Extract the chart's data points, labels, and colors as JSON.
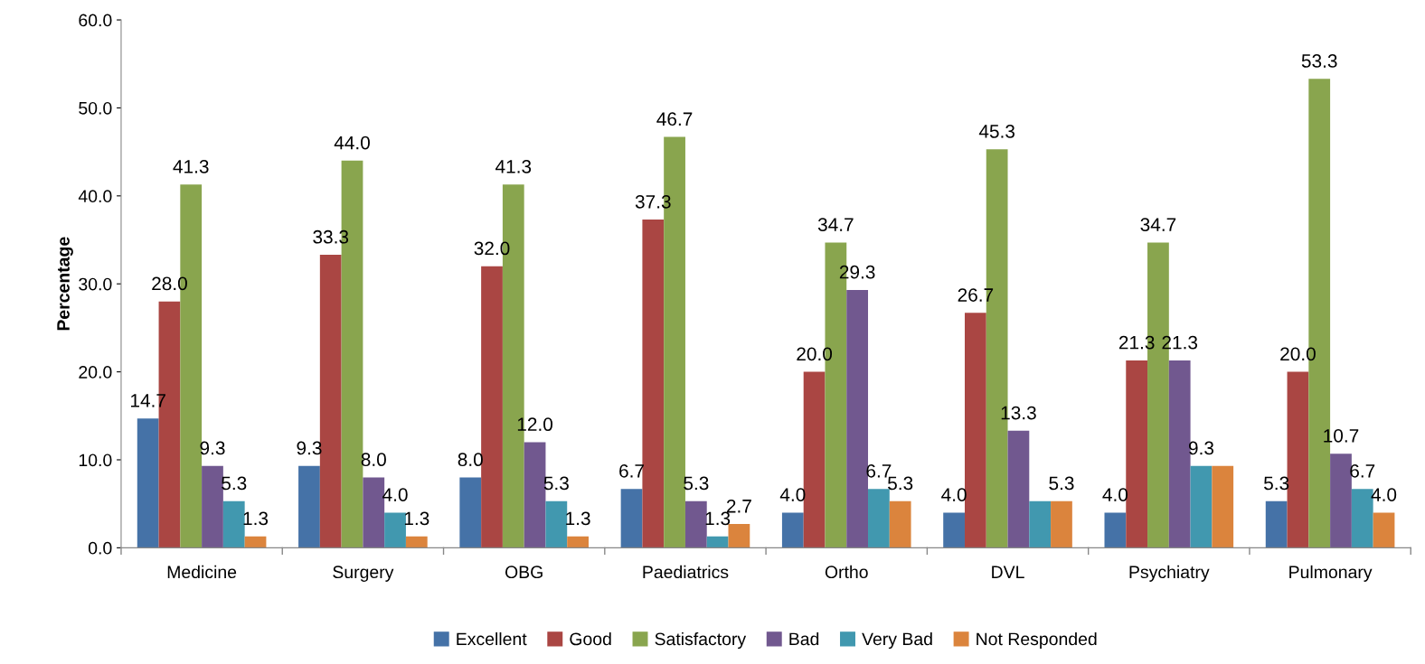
{
  "chart_data": {
    "type": "bar",
    "ylabel": "Percentage",
    "categories": [
      "Medicine",
      "Surgery",
      "OBG",
      "Paediatrics",
      "Ortho",
      "DVL",
      "Psychiatry",
      "Pulmonary"
    ],
    "series": [
      {
        "name": "Excellent",
        "color": "#4572a7",
        "values": [
          14.7,
          9.3,
          8.0,
          6.7,
          4.0,
          4.0,
          4.0,
          5.3
        ],
        "value_labels": [
          "14.7",
          "9.3",
          "8.0",
          "6.7",
          "4.0",
          "4.0",
          "4.0",
          "5.3"
        ]
      },
      {
        "name": "Good",
        "color": "#aa4643",
        "values": [
          28.0,
          33.3,
          32.0,
          37.3,
          20.0,
          26.7,
          21.3,
          20.0
        ],
        "value_labels": [
          "28.0",
          "33.3",
          "32.0",
          "37.3",
          "20.0",
          "26.7",
          "21.3",
          "20.0"
        ]
      },
      {
        "name": "Satisfactory",
        "color": "#89a54e",
        "values": [
          41.3,
          44.0,
          41.3,
          46.7,
          34.7,
          45.3,
          34.7,
          53.3
        ],
        "value_labels": [
          "41.3",
          "44.0",
          "41.3",
          "46.7",
          "34.7",
          "45.3",
          "34.7",
          "53.3"
        ]
      },
      {
        "name": "Bad",
        "color": "#71588f",
        "values": [
          9.3,
          8.0,
          12.0,
          5.3,
          29.3,
          13.3,
          21.3,
          10.7
        ],
        "value_labels": [
          "9.3",
          "8.0",
          "12.0",
          "5.3",
          "29.3",
          "13.3",
          "21.3",
          "10.7"
        ]
      },
      {
        "name": "Very Bad",
        "color": "#4198af",
        "values": [
          5.3,
          4.0,
          5.3,
          1.3,
          6.7,
          5.3,
          9.3,
          6.7
        ],
        "value_labels": [
          "5.3",
          "4.0",
          "5.3",
          "1.3",
          "6.7",
          null,
          "9.3",
          "6.7"
        ]
      },
      {
        "name": "Not Responded",
        "color": "#db843d",
        "values": [
          1.3,
          1.3,
          1.3,
          2.7,
          5.3,
          5.3,
          9.3,
          4.0
        ],
        "value_labels": [
          "1.3",
          "1.3",
          "1.3",
          "2.7",
          "5.3",
          "5.3",
          null,
          "4.0"
        ]
      }
    ],
    "ylim": [
      0,
      60
    ],
    "yticks": [
      {
        "value": 0,
        "label": "0.0"
      },
      {
        "value": 10,
        "label": "10.0"
      },
      {
        "value": 20,
        "label": "20.0"
      },
      {
        "value": 30,
        "label": "30.0"
      },
      {
        "value": 40,
        "label": "40.0"
      },
      {
        "value": 50,
        "label": "50.0"
      },
      {
        "value": 60,
        "label": "60.0"
      }
    ],
    "legend": "bottom"
  }
}
